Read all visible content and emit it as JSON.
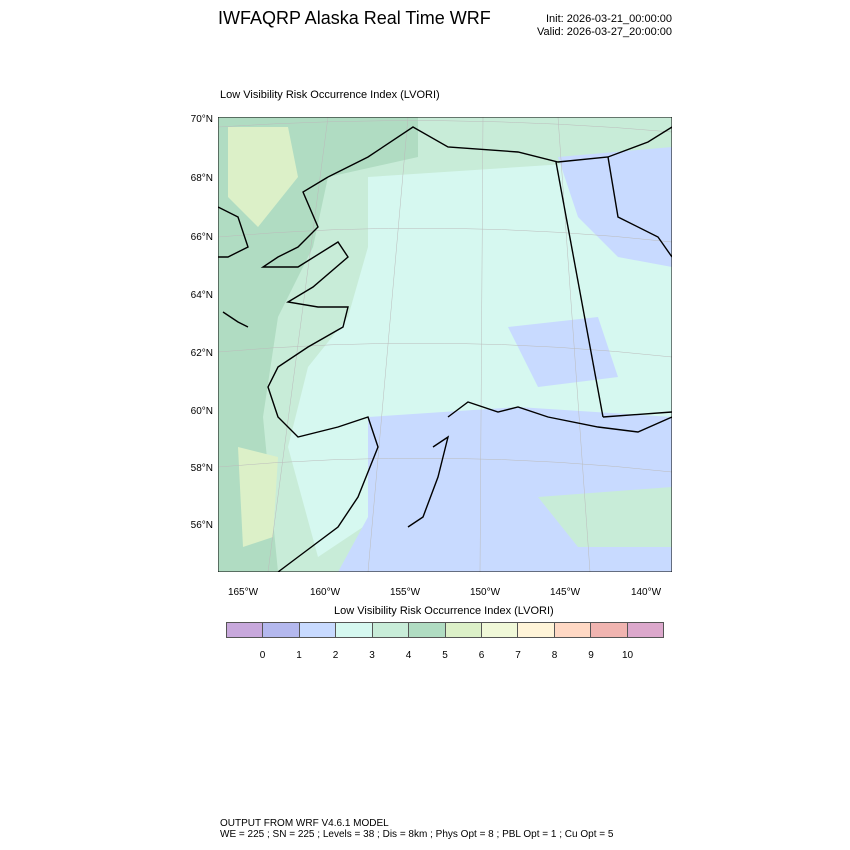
{
  "header": {
    "title": "IWFAQRP Alaska Real Time WRF",
    "init": "Init: 2026-03-21_00:00:00",
    "valid": "Valid: 2026-03-27_20:00:00"
  },
  "chart_data": {
    "type": "heatmap",
    "title": "Low Visibility Risk Occurrence Index   (LVORI)",
    "projection": "map of Alaska",
    "lat_ticks": [
      "70°N",
      "68°N",
      "66°N",
      "64°N",
      "62°N",
      "60°N",
      "58°N",
      "56°N"
    ],
    "lon_ticks": [
      "165°W",
      "160°W",
      "155°W",
      "150°W",
      "145°W",
      "140°W"
    ],
    "colorbar": {
      "title": "Low Visibility Risk Occurrence Index  (LVORI)",
      "labels": [
        "0",
        "1",
        "2",
        "3",
        "4",
        "5",
        "6",
        "7",
        "8",
        "9",
        "10"
      ],
      "colors": [
        "#c8a8dc",
        "#b4b8ee",
        "#c8daff",
        "#d6f8f0",
        "#c8ecd8",
        "#b0dcc2",
        "#dcf0c8",
        "#f0f8d8",
        "#fff4d8",
        "#ffd8c4",
        "#f0b4b0",
        "#dca8cc"
      ]
    },
    "dominant_values": {
      "interior": "2-3",
      "southeast_and_gulf": "1-2",
      "western_coast_and_sea": "3-5"
    }
  },
  "footer": {
    "line1": "OUTPUT FROM WRF V4.6.1 MODEL",
    "line2": "WE = 225 ; SN = 225 ; Levels = 38 ; Dis = 8km ; Phys Opt = 8 ; PBL Opt = 1 ; Cu Opt = 5"
  }
}
